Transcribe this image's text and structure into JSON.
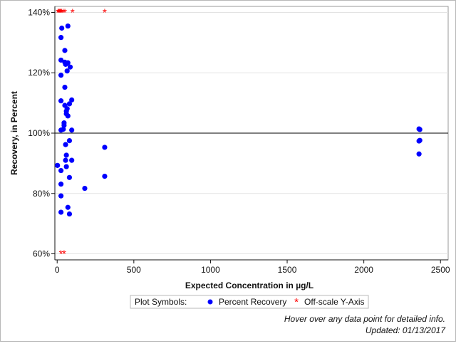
{
  "chart_data": {
    "type": "scatter",
    "xlabel": "Expected Concentration in µg/L",
    "ylabel": "Recovery, in Percent",
    "xlim": [
      -15,
      2550
    ],
    "ylim": [
      58,
      142
    ],
    "x_ticks": [
      0,
      500,
      1000,
      1500,
      2000,
      2500
    ],
    "y_ticks": [
      60,
      80,
      100,
      120,
      140
    ],
    "y_tick_labels": [
      "60%",
      "80%",
      "100%",
      "120%",
      "140%"
    ],
    "reference_line_y": 100,
    "grid": "horizontal",
    "legend": {
      "title": "Plot Symbols:",
      "placement": "bottom-center",
      "entries": [
        "Percent Recovery",
        "Off-scale Y-Axis"
      ]
    },
    "colors": {
      "recovery": "#0000ff",
      "offscale": "#ff0000",
      "grid": "#e3e3e3",
      "reference": "#000000"
    },
    "series": [
      {
        "name": "Percent Recovery",
        "marker": "filled-circle",
        "points": [
          [
            2,
            89.3
          ],
          [
            25,
            73.8
          ],
          [
            25,
            79.2
          ],
          [
            25,
            83.1
          ],
          [
            25,
            87.6
          ],
          [
            25,
            101.0
          ],
          [
            25,
            110.7
          ],
          [
            25,
            119.2
          ],
          [
            25,
            124.2
          ],
          [
            25,
            131.7
          ],
          [
            30,
            134.8
          ],
          [
            40,
            101.3
          ],
          [
            45,
            102.6
          ],
          [
            45,
            103.4
          ],
          [
            50,
            109.2
          ],
          [
            50,
            115.2
          ],
          [
            50,
            123.5
          ],
          [
            50,
            127.4
          ],
          [
            55,
            91.0
          ],
          [
            55,
            96.2
          ],
          [
            55,
            122.8
          ],
          [
            60,
            88.9
          ],
          [
            60,
            92.7
          ],
          [
            60,
            106.4
          ],
          [
            60,
            107.3
          ],
          [
            65,
            108.1
          ],
          [
            65,
            120.6
          ],
          [
            70,
            75.4
          ],
          [
            70,
            105.7
          ],
          [
            70,
            123.3
          ],
          [
            70,
            135.5
          ],
          [
            80,
            73.2
          ],
          [
            80,
            85.3
          ],
          [
            80,
            97.5
          ],
          [
            80,
            109.7
          ],
          [
            85,
            121.9
          ],
          [
            95,
            91.0
          ],
          [
            95,
            101.0
          ],
          [
            95,
            111.0
          ],
          [
            180,
            81.7
          ],
          [
            310,
            85.7
          ],
          [
            310,
            95.3
          ],
          [
            2360,
            93.1
          ],
          [
            2360,
            97.4
          ],
          [
            2360,
            101.4
          ],
          [
            2365,
            97.6
          ],
          [
            2365,
            101.2
          ]
        ]
      },
      {
        "name": "Off-scale Y-Axis",
        "marker": "asterisk",
        "points": [
          [
            5,
            140
          ],
          [
            10,
            140
          ],
          [
            15,
            140
          ],
          [
            20,
            140
          ],
          [
            25,
            140
          ],
          [
            30,
            140
          ],
          [
            40,
            140
          ],
          [
            50,
            140
          ],
          [
            100,
            140
          ],
          [
            310,
            140
          ],
          [
            25,
            60
          ],
          [
            45,
            60
          ]
        ]
      }
    ]
  },
  "notes": {
    "hover": "Hover over any data point for detailed info.",
    "updated": "Updated: 01/13/2017"
  }
}
